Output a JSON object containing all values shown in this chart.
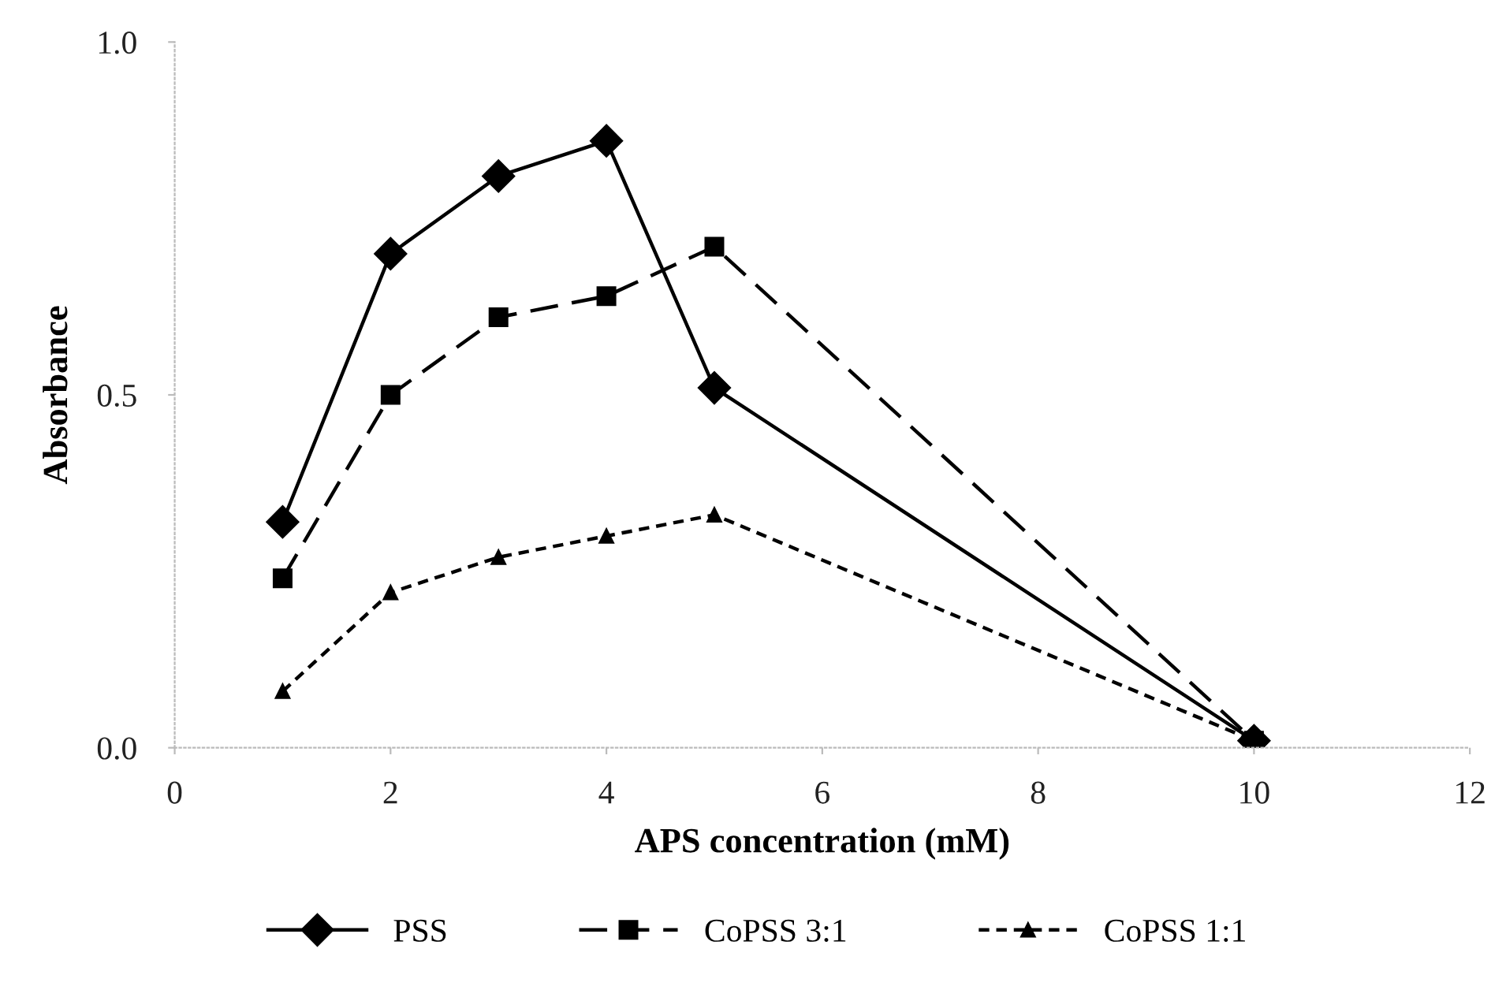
{
  "chart_data": {
    "type": "line",
    "xlabel": "APS concentration (mM)",
    "ylabel": "Absorbance",
    "x": [
      1,
      2,
      3,
      4,
      5,
      10
    ],
    "series": [
      {
        "name": "PSS",
        "color": "#000000",
        "values": [
          0.32,
          0.7,
          0.81,
          0.86,
          0.51,
          0.01
        ],
        "marker": "diamond",
        "line_style": "solid"
      },
      {
        "name": "CoPSS 3:1",
        "color": "#000000",
        "values": [
          0.24,
          0.5,
          0.61,
          0.64,
          0.71,
          0.01
        ],
        "marker": "square",
        "line_style": "dashed"
      },
      {
        "name": "CoPSS 1:1",
        "color": "#000000",
        "values": [
          0.08,
          0.22,
          0.27,
          0.3,
          0.33,
          0.01
        ],
        "marker": "triangle",
        "line_style": "dotted"
      }
    ],
    "xlim": [
      0,
      12
    ],
    "xticks": [
      0,
      2,
      4,
      6,
      8,
      10,
      12
    ],
    "ylim": [
      0,
      1
    ],
    "yticks": [
      {
        "value": 0,
        "label": "0.0"
      },
      {
        "value": 0.5,
        "label": "0.5"
      },
      {
        "value": 1,
        "label": "1.0"
      }
    ],
    "grid": false,
    "legend": "bottom"
  }
}
